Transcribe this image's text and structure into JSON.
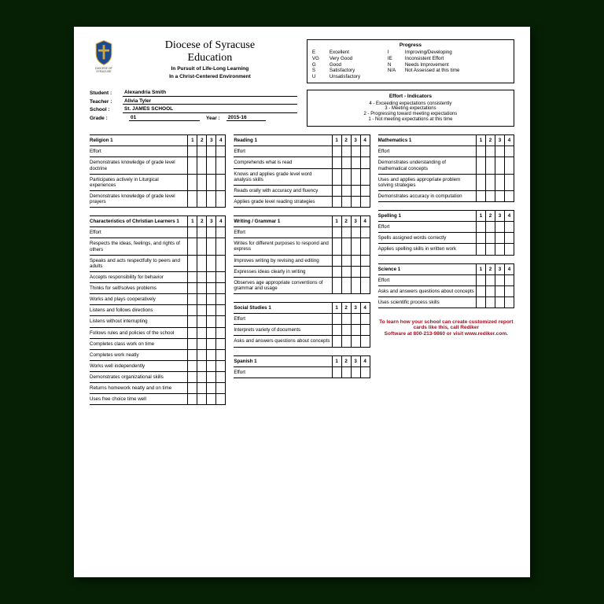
{
  "header": {
    "org_line1": "Diocese of Syracuse",
    "org_line2": "Education",
    "tag1": "In Pursuit of Life-Long Learning",
    "tag2": "In a Christ-Centered Environment",
    "crest_label": "DIOCESE OF SYRACUSE"
  },
  "progress": {
    "title": "Progress",
    "keys_left": [
      "E",
      "VG",
      "G",
      "S",
      "U"
    ],
    "vals_left": [
      "Excellent",
      "Very Good",
      "Good",
      "Satisfactory",
      "Unsatisfactory"
    ],
    "keys_right": [
      "I",
      "IE",
      "N",
      "N/A"
    ],
    "vals_right": [
      "Improving/Developing",
      "Inconsistent Effort",
      "Needs Improvement",
      "Not Assessed at this time"
    ]
  },
  "student": {
    "stu_lab": "Student  :",
    "stu_val": "Alexandria Smith",
    "tch_lab": "Teacher :",
    "tch_val": "Alivia Tyler",
    "sch_lab": "School   :",
    "sch_val": "St. JAMES SCHOOL",
    "grd_lab": "Grade    :",
    "grd_val": "01",
    "yr_lab": "Year :",
    "yr_val": "2015-16"
  },
  "effort": {
    "title": "Effort - Indicators",
    "i4": "4  -  Exceeding expectations consistently",
    "i3": "3  -  Meeting expectations",
    "i2": "2  -  Progressing toward meeting expectations",
    "i1": "1  -  Not meeting expectations at this time"
  },
  "periods": [
    "1",
    "2",
    "3",
    "4"
  ],
  "subjects": {
    "religion": {
      "name": "Religion 1",
      "rows": [
        "Effort",
        "Demonstrates knowledge of grade level doctrine",
        "Participates actively in Liturgical experiences",
        "Demonstrates knowledge of grade level prayers"
      ]
    },
    "reading": {
      "name": "Reading 1",
      "rows": [
        "Effort",
        "Comprehends what is read",
        "Knows and applies grade level word analysis skills",
        "Reads orally with accuracy and fluency",
        "Applies grade level reading strategies"
      ]
    },
    "math": {
      "name": "Mathematics 1",
      "rows": [
        "Effort",
        "Demonstrates understanding of mathematical concepts",
        "Uses and applies appropriate problem solving strategies",
        "Demonstrates accuracy in computation"
      ]
    },
    "chr": {
      "name": "Characteristics of Christian Learners 1",
      "rows": [
        "Effort",
        "Respects the ideas, feelings, and rights of others",
        "Speaks and acts respectfully to peers and adults",
        "Accepts responsibility for behavior",
        "Thinks for self/solves problems",
        "Works and plays cooperatively",
        "Listens and follows directions",
        "Listens without interrupting",
        "Follows rules and policies of the school",
        "Completes class work on time",
        "Completes work neatly",
        "Works well independently",
        "Demonstrates organizational skills",
        "Returns homework neatly and on time",
        "Uses free choice time well"
      ]
    },
    "writing": {
      "name": "Writing / Grammar 1",
      "rows": [
        "Effort",
        "Writes for different purposes to respond and express",
        "Improves writing by revising and editing",
        "Expresses ideas clearly in writing",
        "Observes age appropriate conventions of grammar and usage"
      ]
    },
    "social": {
      "name": "Social Studies 1",
      "rows": [
        "Effort",
        "Interprets variety of documents",
        "Asks and answers questions about concepts"
      ]
    },
    "spanish": {
      "name": "Spanish 1",
      "rows": [
        "Effort"
      ]
    },
    "spelling": {
      "name": "Spelling 1",
      "rows": [
        "Effort",
        "Spells assigned words correctly",
        "Applies spelling skills in written work"
      ]
    },
    "science": {
      "name": "Science 1",
      "rows": [
        "Effort",
        "Asks and answers questions about concepts",
        "Uses scientific process skills"
      ]
    }
  },
  "footer": {
    "l1": "To learn how your school can create customized report cards like this, call Rediker",
    "l2": "Software at 800-213-9860 or visit www.rediker.com."
  },
  "colors": {
    "page_bg": "#052005",
    "footer_text": "#a01020",
    "crest_blue": "#1e4b8f",
    "crest_gold": "#d4a838"
  }
}
